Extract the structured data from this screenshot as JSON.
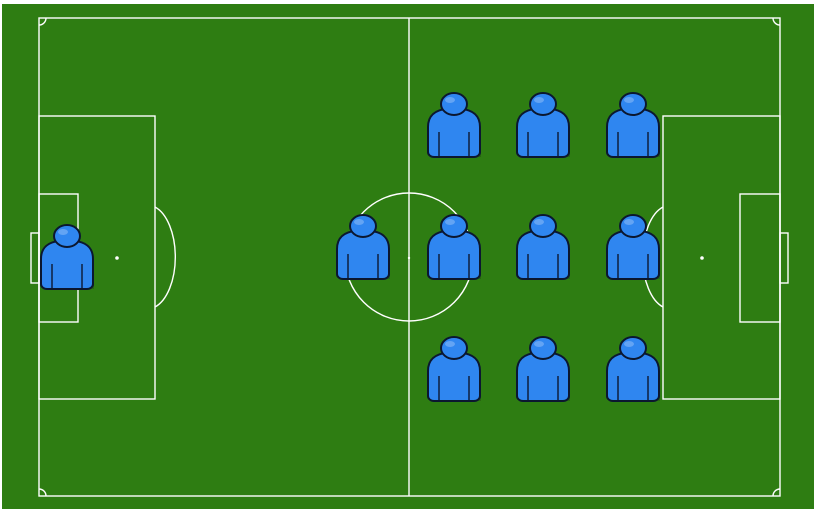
{
  "pitch": {
    "grass_color": "#2e7d12",
    "border_color": "#ffffff",
    "line_color": "#ffffff"
  },
  "players": {
    "team_color": "#2f86f0",
    "outline_color": "#0b1730",
    "count": 11,
    "formation_rows": {
      "goalkeeper": 1,
      "forward_single": 1,
      "block_columns": 3,
      "block_rows": 3
    }
  }
}
